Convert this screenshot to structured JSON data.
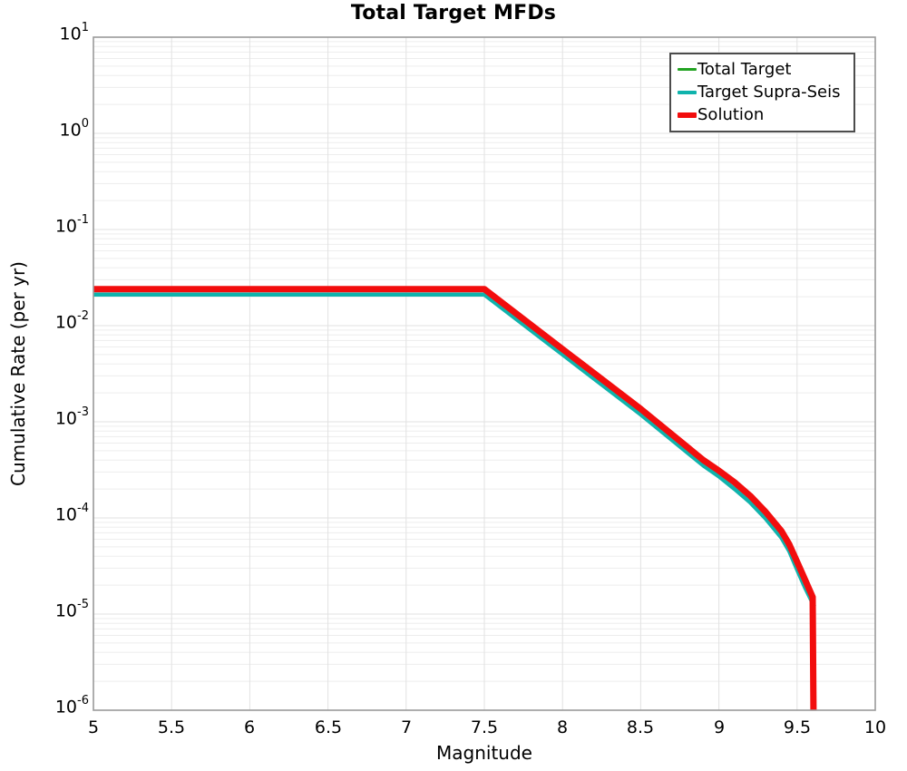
{
  "title": "Total Target MFDs",
  "chart_data": {
    "type": "line",
    "title": "Total Target MFDs",
    "xlabel": "Magnitude",
    "ylabel": "Cumulative Rate (per yr)",
    "xlim": [
      5,
      10
    ],
    "ylim": [
      1e-06,
      10
    ],
    "yscale": "log",
    "grid": "major and log-minor, light gray",
    "legend_position": "upper right",
    "x_ticks": {
      "values": [
        5,
        5.5,
        6,
        6.5,
        7,
        7.5,
        8,
        8.5,
        9,
        9.5,
        10
      ],
      "labels": [
        "5",
        "5.5",
        "6",
        "6.5",
        "7",
        "7.5",
        "8",
        "8.5",
        "9",
        "9.5",
        "10"
      ]
    },
    "y_ticks": {
      "base": "10",
      "exponents": [
        1,
        0,
        -1,
        -2,
        -3,
        -4,
        -5,
        -6
      ]
    },
    "series": [
      {
        "name": "Total Target",
        "color": "#23a323",
        "width": 3.5,
        "points": [
          [
            5.0,
            0.024
          ],
          [
            7.5,
            0.024
          ],
          [
            8.0,
            0.0057
          ],
          [
            8.5,
            0.00136
          ],
          [
            8.9,
            0.0004
          ],
          [
            9.0,
            0.00031
          ],
          [
            9.1,
            0.000235
          ],
          [
            9.2,
            0.00017
          ],
          [
            9.3,
            0.000115
          ],
          [
            9.4,
            7.3e-05
          ],
          [
            9.45,
            5.3e-05
          ],
          [
            9.5,
            3.5e-05
          ],
          [
            9.55,
            2.3e-05
          ],
          [
            9.6,
            1.45e-05
          ]
        ]
      },
      {
        "name": "Target Supra-Seis",
        "color": "#0fb3ac",
        "width": 4.5,
        "points": [
          [
            5.0,
            0.021
          ],
          [
            7.5,
            0.021
          ],
          [
            8.0,
            0.005
          ],
          [
            8.5,
            0.00119
          ],
          [
            8.9,
            0.00035
          ],
          [
            9.0,
            0.00027
          ],
          [
            9.1,
            0.0002
          ],
          [
            9.2,
            0.000145
          ],
          [
            9.3,
            9.8e-05
          ],
          [
            9.4,
            6.2e-05
          ],
          [
            9.45,
            4.5e-05
          ],
          [
            9.5,
            2.9e-05
          ],
          [
            9.55,
            1.9e-05
          ],
          [
            9.61,
            1.2e-05
          ]
        ]
      },
      {
        "name": "Solution",
        "color": "#f20d0d",
        "width": 7,
        "points": [
          [
            5.0,
            0.024
          ],
          [
            7.5,
            0.024
          ],
          [
            8.0,
            0.0057
          ],
          [
            8.5,
            0.00136
          ],
          [
            8.9,
            0.0004
          ],
          [
            9.0,
            0.00031
          ],
          [
            9.1,
            0.000235
          ],
          [
            9.2,
            0.00017
          ],
          [
            9.3,
            0.000115
          ],
          [
            9.4,
            7.3e-05
          ],
          [
            9.45,
            5.3e-05
          ],
          [
            9.5,
            3.5e-05
          ],
          [
            9.55,
            2.3e-05
          ],
          [
            9.6,
            1.5e-05
          ],
          [
            9.605,
            1e-06
          ]
        ]
      }
    ]
  },
  "colors": {
    "frame": "#9a9a9a",
    "grid_minor": "#ededed",
    "grid_major": "#e2e2e2",
    "legend_border": "#4c4c4c",
    "background": "#ffffff"
  }
}
